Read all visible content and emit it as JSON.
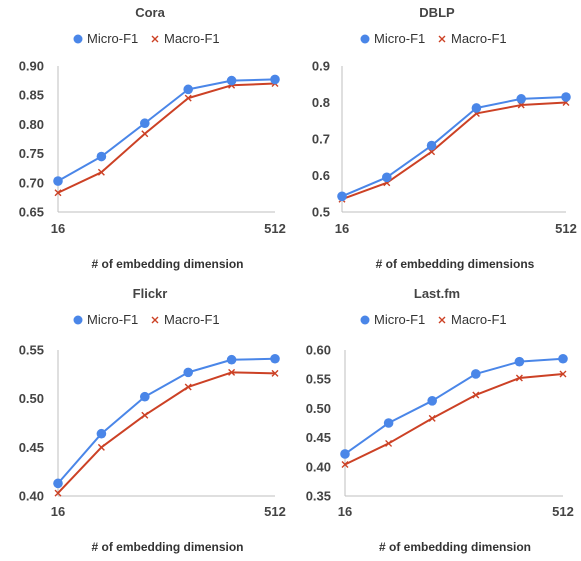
{
  "chart_data": [
    {
      "type": "line",
      "title": "Cora",
      "xlabel": "# of embedding dimension",
      "ylabel": "",
      "xlim": [
        16,
        512
      ],
      "ylim": [
        0.65,
        0.9
      ],
      "yticks": [
        "0.65",
        "0.70",
        "0.75",
        "0.80",
        "0.85",
        "0.90"
      ],
      "xticks": [
        "16",
        "512"
      ],
      "legend_position": "top",
      "grid": false,
      "x": [
        16,
        32,
        64,
        128,
        256,
        512
      ],
      "series": [
        {
          "name": "Micro-F1",
          "color": "#4a86e8",
          "marker": "circle",
          "values": [
            0.703,
            0.745,
            0.802,
            0.86,
            0.875,
            0.877
          ]
        },
        {
          "name": "Macro-F1",
          "color": "#cc4125",
          "marker": "x",
          "values": [
            0.683,
            0.718,
            0.784,
            0.845,
            0.867,
            0.87
          ]
        }
      ]
    },
    {
      "type": "line",
      "title": "DBLP",
      "xlabel": "# of embedding dimensions",
      "ylabel": "",
      "xlim": [
        16,
        512
      ],
      "ylim": [
        0.5,
        0.9
      ],
      "yticks": [
        "0.5",
        "0.6",
        "0.7",
        "0.8",
        "0.9"
      ],
      "xticks": [
        "16",
        "512"
      ],
      "legend_position": "top",
      "grid": false,
      "x": [
        16,
        32,
        64,
        128,
        256,
        512
      ],
      "series": [
        {
          "name": "Micro-F1",
          "color": "#4a86e8",
          "marker": "circle",
          "values": [
            0.543,
            0.595,
            0.682,
            0.785,
            0.81,
            0.815
          ]
        },
        {
          "name": "Macro-F1",
          "color": "#cc4125",
          "marker": "x",
          "values": [
            0.535,
            0.58,
            0.665,
            0.77,
            0.793,
            0.8
          ]
        }
      ]
    },
    {
      "type": "line",
      "title": "Flickr",
      "xlabel": "# of embedding dimension",
      "ylabel": "",
      "xlim": [
        16,
        512
      ],
      "ylim": [
        0.4,
        0.55
      ],
      "yticks": [
        "0.40",
        "0.45",
        "0.50",
        "0.55"
      ],
      "xticks": [
        "16",
        "512"
      ],
      "legend_position": "top",
      "grid": false,
      "x": [
        16,
        32,
        64,
        128,
        256,
        512
      ],
      "series": [
        {
          "name": "Micro-F1",
          "color": "#4a86e8",
          "marker": "circle",
          "values": [
            0.413,
            0.464,
            0.502,
            0.527,
            0.54,
            0.541
          ]
        },
        {
          "name": "Macro-F1",
          "color": "#cc4125",
          "marker": "x",
          "values": [
            0.403,
            0.45,
            0.483,
            0.512,
            0.527,
            0.526
          ]
        }
      ]
    },
    {
      "type": "line",
      "title": "Last.fm",
      "xlabel": "# of embedding dimension",
      "ylabel": "",
      "xlim": [
        16,
        512
      ],
      "ylim": [
        0.35,
        0.6
      ],
      "yticks": [
        "0.35",
        "0.40",
        "0.45",
        "0.50",
        "0.55",
        "0.60"
      ],
      "xticks": [
        "16",
        "512"
      ],
      "legend_position": "top",
      "grid": false,
      "x": [
        16,
        32,
        64,
        128,
        256,
        512
      ],
      "series": [
        {
          "name": "Micro-F1",
          "color": "#4a86e8",
          "marker": "circle",
          "values": [
            0.422,
            0.475,
            0.513,
            0.559,
            0.58,
            0.585
          ]
        },
        {
          "name": "Macro-F1",
          "color": "#cc4125",
          "marker": "x",
          "values": [
            0.404,
            0.44,
            0.483,
            0.523,
            0.552,
            0.559
          ]
        }
      ]
    }
  ]
}
